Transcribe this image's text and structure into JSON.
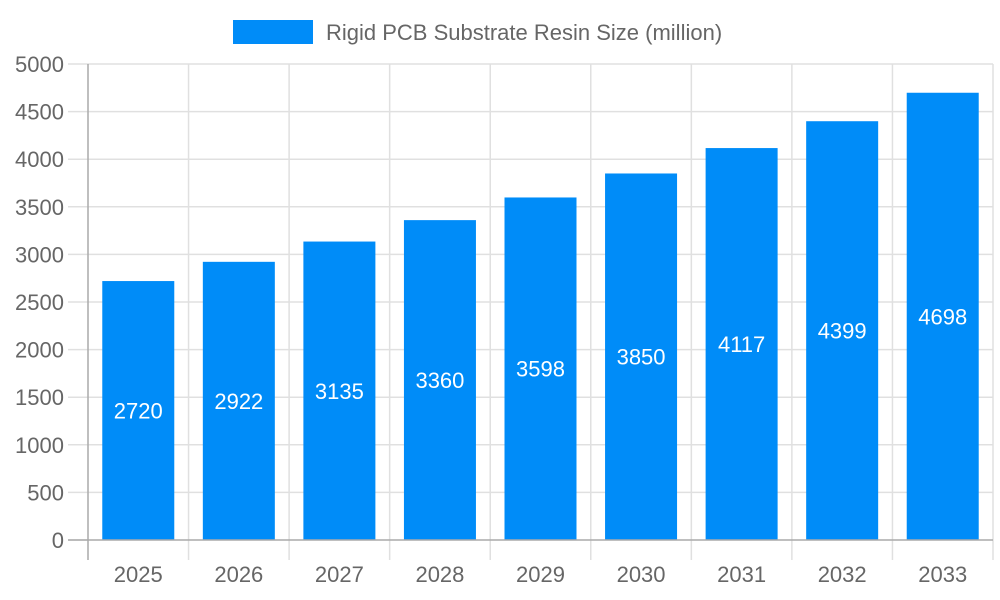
{
  "chart_data": {
    "type": "bar",
    "categories": [
      "2025",
      "2026",
      "2027",
      "2028",
      "2029",
      "2030",
      "2031",
      "2032",
      "2033"
    ],
    "series": [
      {
        "name": "Rigid PCB Substrate Resin Size (million)",
        "values": [
          2720,
          2922,
          3135,
          3360,
          3598,
          3850,
          4117,
          4399,
          4698
        ],
        "color": "#008cf8"
      }
    ],
    "ylim": [
      0,
      5000
    ],
    "yticks": [
      0,
      500,
      1000,
      1500,
      2000,
      2500,
      3000,
      3500,
      4000,
      4500,
      5000
    ],
    "grid": true,
    "legend": "top",
    "data_labels": true
  }
}
